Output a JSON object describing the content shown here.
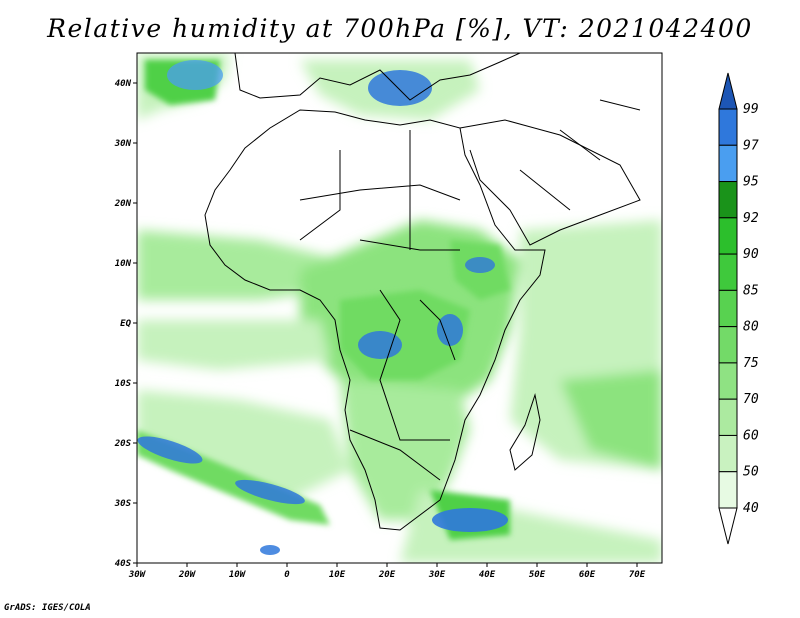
{
  "title": "Relative humidity at 700hPa [%], VT: 2021042400",
  "credit": "GrADS: IGES/COLA",
  "map": {
    "lon_range": [
      -30,
      75
    ],
    "lat_range": [
      -40,
      45
    ],
    "lon_ticks": [
      {
        "value": -30,
        "label": "30W"
      },
      {
        "value": -20,
        "label": "20W"
      },
      {
        "value": -10,
        "label": "10W"
      },
      {
        "value": 0,
        "label": "0"
      },
      {
        "value": 10,
        "label": "10E"
      },
      {
        "value": 20,
        "label": "20E"
      },
      {
        "value": 30,
        "label": "30E"
      },
      {
        "value": 40,
        "label": "40E"
      },
      {
        "value": 50,
        "label": "50E"
      },
      {
        "value": 60,
        "label": "60E"
      },
      {
        "value": 70,
        "label": "70E"
      }
    ],
    "lat_ticks": [
      {
        "value": 40,
        "label": "40N"
      },
      {
        "value": 30,
        "label": "30N"
      },
      {
        "value": 20,
        "label": "20N"
      },
      {
        "value": 10,
        "label": "10N"
      },
      {
        "value": 0,
        "label": "EQ"
      },
      {
        "value": -10,
        "label": "10S"
      },
      {
        "value": -20,
        "label": "20S"
      },
      {
        "value": -30,
        "label": "30S"
      },
      {
        "value": -40,
        "label": "40S"
      }
    ],
    "colors": {
      "40": "#ffffff",
      "50": "#e3f8dd",
      "60": "#c6f2bd",
      "70": "#a8eb9c",
      "75": "#8ce37e",
      "80": "#6fdb62",
      "85": "#4fd046",
      "90": "#2cbf2c",
      "92": "#1da51d",
      "95": "#4a9ef0",
      "97": "#2f78dc",
      "99": "#1d56b5"
    }
  },
  "colorbar": {
    "labels": [
      "99",
      "97",
      "95",
      "92",
      "90",
      "85",
      "80",
      "75",
      "70",
      "60",
      "50",
      "40"
    ],
    "colors": [
      "#2f78dc",
      "#4a9ef0",
      "#1a931a",
      "#2cbf2c",
      "#3fc93c",
      "#58d250",
      "#73da68",
      "#8fe283",
      "#aceaa0",
      "#c9f2c0",
      "#e7fae3"
    ],
    "top_arrow_color": "#1d56b5",
    "bottom_arrow_color": "#ffffff"
  }
}
